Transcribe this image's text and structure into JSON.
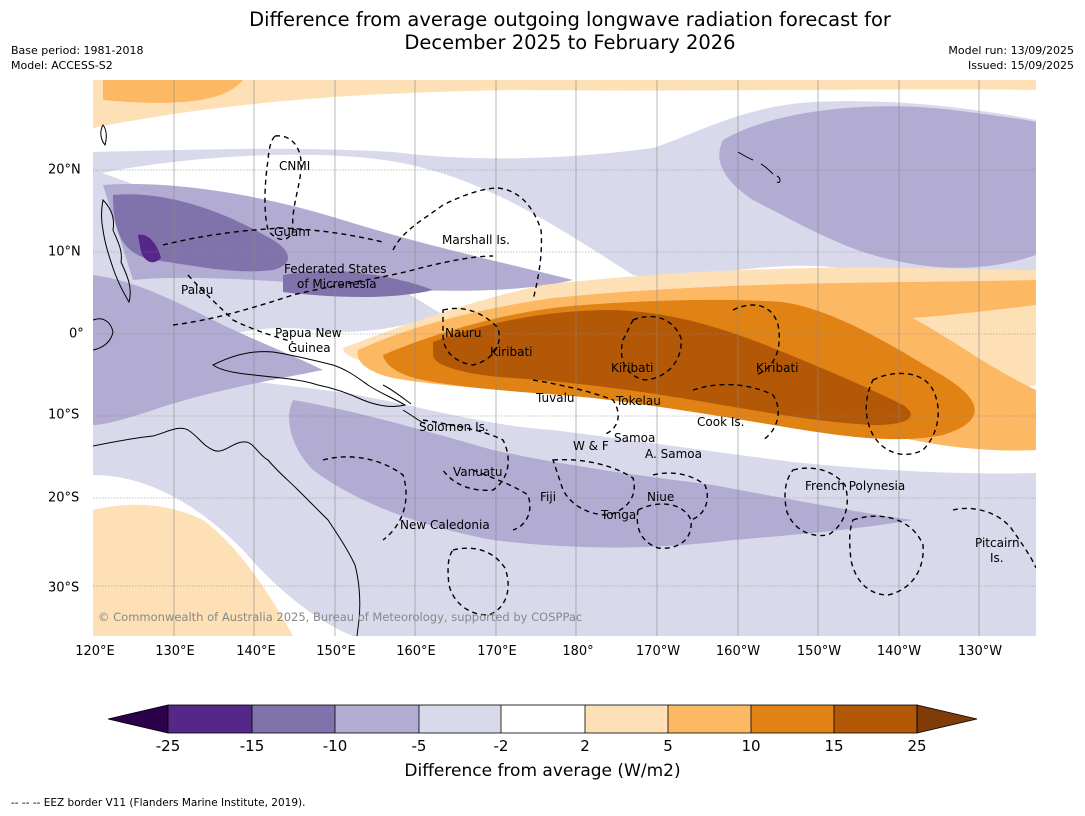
{
  "title": {
    "line1": "Difference from average outgoing longwave radiation forecast for",
    "line2": "December 2025 to February 2026"
  },
  "meta_left": {
    "base_period": "Base period: 1981-2018",
    "model": "Model: ACCESS-S2"
  },
  "meta_right": {
    "model_run": "Model run: 13/09/2025",
    "issued": "Issued: 15/09/2025"
  },
  "copyright": "© Commonwealth of Australia 2025, Bureau of Meteorology, supported by COSPPac",
  "lon_labels": [
    "120°E",
    "130°E",
    "140°E",
    "150°E",
    "160°E",
    "170°E",
    "180°",
    "170°W",
    "160°W",
    "150°W",
    "140°W",
    "130°W"
  ],
  "lat_labels": [
    "20°N",
    "10°N",
    "0°",
    "10°S",
    "20°S",
    "30°S"
  ],
  "regions": {
    "cnmi": "CNMI",
    "guam": "Guam",
    "marshall": "Marshall Is.",
    "fsm1": "Federated States",
    "fsm2": "of Micronesia",
    "palau": "Palau",
    "nauru": "Nauru",
    "png1": "Papua New",
    "png2": "Guinea",
    "kiribati_w": "Kiribati",
    "kiribati_c": "Kiribati",
    "kiribati_e": "Kiribati",
    "tuvalu": "Tuvalu",
    "tokelau": "Tokelau",
    "cook": "Cook Is.",
    "solomon": "Solomon Is.",
    "samoa": "Samoa",
    "wf": "W & F",
    "asamoa": "A. Samoa",
    "vanuatu": "Vanuatu",
    "fiji": "Fiji",
    "niue": "Niue",
    "tonga": "Tonga",
    "newcal": "New Caledonia",
    "frenchpoly": "French Polynesia",
    "pitcairn1": "Pitcairn",
    "pitcairn2": "Is."
  },
  "colorbar": {
    "ticks": [
      "-25",
      "-15",
      "-10",
      "-5",
      "-2",
      "2",
      "5",
      "10",
      "15",
      "25"
    ],
    "colors": {
      "lt_neg25": "#2d004b",
      "neg25_neg15": "#542788",
      "neg15_neg10": "#8073ac",
      "neg10_neg5": "#b2abd2",
      "neg5_neg2": "#d8daeb",
      "neg2_2": "#ffffff",
      "p2_5": "#fee0b6",
      "p5_10": "#fdb863",
      "p10_15": "#e08214",
      "p15_25": "#b35806",
      "gt_25": "#7f3b08"
    },
    "label": "Difference from average (W/m2)"
  },
  "footer": "--  --  -- EEZ border V11 (Flanders Marine Institute, 2019)."
}
